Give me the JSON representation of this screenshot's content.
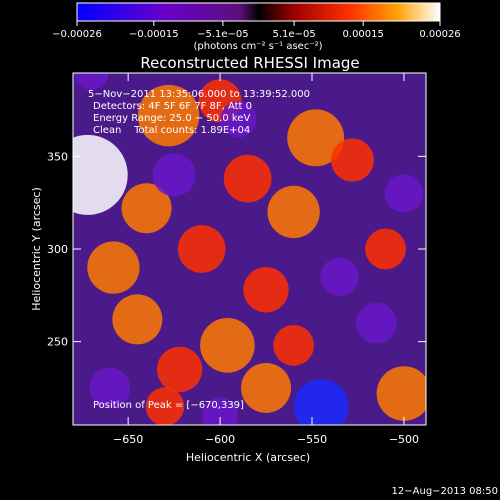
{
  "chart_data": {
    "type": "heatmap",
    "title": "Reconstructed RHESSI Image",
    "xlabel": "Heliocentric X (arcsec)",
    "ylabel": "Heliocentric Y (arcsec)",
    "xlim": [
      -680,
      -488
    ],
    "ylim": [
      205,
      395
    ],
    "x_ticks": [
      -650,
      -600,
      -550,
      -500
    ],
    "x_tick_labels": [
      "−650",
      "−600",
      "−550",
      "−500"
    ],
    "y_ticks": [
      250,
      300,
      350
    ],
    "y_tick_labels": [
      "250",
      "300",
      "350"
    ],
    "colorbar": {
      "ticks": [
        -0.00026,
        -0.00015,
        -5.1e-05,
        5.1e-05,
        0.00015,
        0.00026
      ],
      "tick_labels": [
        "−0.00026",
        "−0.00015",
        "−5.1e−05",
        "5.1e−05",
        "0.00015",
        "0.00026"
      ],
      "unit_label": "(photons cm⁻² s⁻¹ asec⁻²)",
      "range": [
        -0.00026,
        0.00026
      ]
    },
    "annotations": [
      "5−Nov−2011 13:35:06.000 to 13:39:52.000",
      "Detectors: 4F 5F 6F 7F 8F, Att 0",
      "Energy Range: 25.0 − 50.0 keV",
      "Clean    Total counts: 1.89E+04"
    ],
    "peak_label": "Position of Peak = [−670,339]",
    "peak": {
      "x": -670,
      "y": 339
    },
    "sources": [
      {
        "x": -672,
        "y": 340,
        "v": 0.00026
      },
      {
        "x": -628,
        "y": 372,
        "v": 0.00018
      },
      {
        "x": -658,
        "y": 290,
        "v": 0.00014
      },
      {
        "x": -640,
        "y": 322,
        "v": 0.00013
      },
      {
        "x": -610,
        "y": 300,
        "v": 0.00012
      },
      {
        "x": -596,
        "y": 248,
        "v": 0.00015
      },
      {
        "x": -622,
        "y": 235,
        "v": 0.00011
      },
      {
        "x": -645,
        "y": 262,
        "v": 0.00013
      },
      {
        "x": -585,
        "y": 338,
        "v": 0.00012
      },
      {
        "x": -560,
        "y": 320,
        "v": 0.00014
      },
      {
        "x": -548,
        "y": 360,
        "v": 0.00016
      },
      {
        "x": -528,
        "y": 348,
        "v": 0.0001
      },
      {
        "x": -575,
        "y": 278,
        "v": 0.00011
      },
      {
        "x": -560,
        "y": 248,
        "v": 9e-05
      },
      {
        "x": -575,
        "y": 225,
        "v": 0.00013
      },
      {
        "x": -500,
        "y": 222,
        "v": 0.00015
      },
      {
        "x": -510,
        "y": 300,
        "v": 9e-05
      },
      {
        "x": -600,
        "y": 380,
        "v": 0.0001
      },
      {
        "x": -630,
        "y": 215,
        "v": 8e-05
      },
      {
        "x": -660,
        "y": 225,
        "v": -9e-05
      },
      {
        "x": -625,
        "y": 340,
        "v": -0.0001
      },
      {
        "x": -590,
        "y": 370,
        "v": -7e-05
      },
      {
        "x": -545,
        "y": 215,
        "v": -0.00015
      },
      {
        "x": -535,
        "y": 285,
        "v": -8e-05
      },
      {
        "x": -515,
        "y": 260,
        "v": -9e-05
      },
      {
        "x": -500,
        "y": 330,
        "v": -8e-05
      },
      {
        "x": -600,
        "y": 210,
        "v": -7e-05
      },
      {
        "x": -670,
        "y": 395,
        "v": -6e-05
      }
    ]
  },
  "footer": {
    "timestamp": "12−Aug−2013 08:50"
  }
}
